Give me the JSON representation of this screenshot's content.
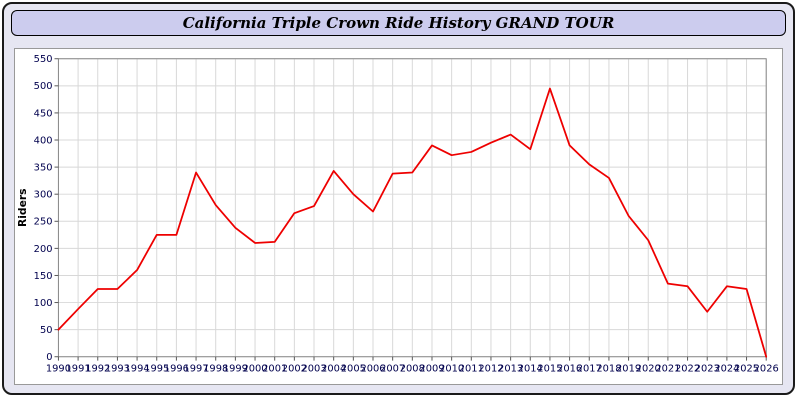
{
  "window": {
    "title": "California Triple Crown Ride History GRAND TOUR"
  },
  "chart_data": {
    "type": "line",
    "title": "California Triple Crown Ride History GRAND TOUR",
    "xlabel": "",
    "ylabel": "Riders",
    "categories": [
      "1990",
      "1991",
      "1992",
      "1993",
      "1994",
      "1995",
      "1996",
      "1997",
      "1998",
      "1999",
      "2000",
      "2001",
      "2002",
      "2003",
      "2004",
      "2005",
      "2006",
      "2007",
      "2008",
      "2009",
      "2010",
      "2011",
      "2012",
      "2013",
      "2014",
      "2015",
      "2016",
      "2017",
      "2018",
      "2019",
      "2020",
      "2021",
      "2022",
      "2023",
      "2024",
      "2025",
      "2026"
    ],
    "values": [
      50,
      88,
      125,
      125,
      160,
      225,
      225,
      340,
      280,
      238,
      210,
      212,
      265,
      278,
      343,
      300,
      268,
      338,
      340,
      390,
      372,
      378,
      395,
      410,
      383,
      495,
      390,
      355,
      330,
      260,
      215,
      135,
      130,
      83,
      130,
      125,
      0
    ],
    "ylim": [
      0,
      550
    ],
    "ytick_step": 50,
    "grid": true,
    "legend": "none",
    "line_color": "#ee0000",
    "grid_color": "#d8d8d8",
    "plot_border_color": "#888888",
    "tick_label_color": "#00004d",
    "plot_bg": "#ffffff",
    "page_bg": "#e6e6f2",
    "titlebar_bg": "#ccccee"
  }
}
